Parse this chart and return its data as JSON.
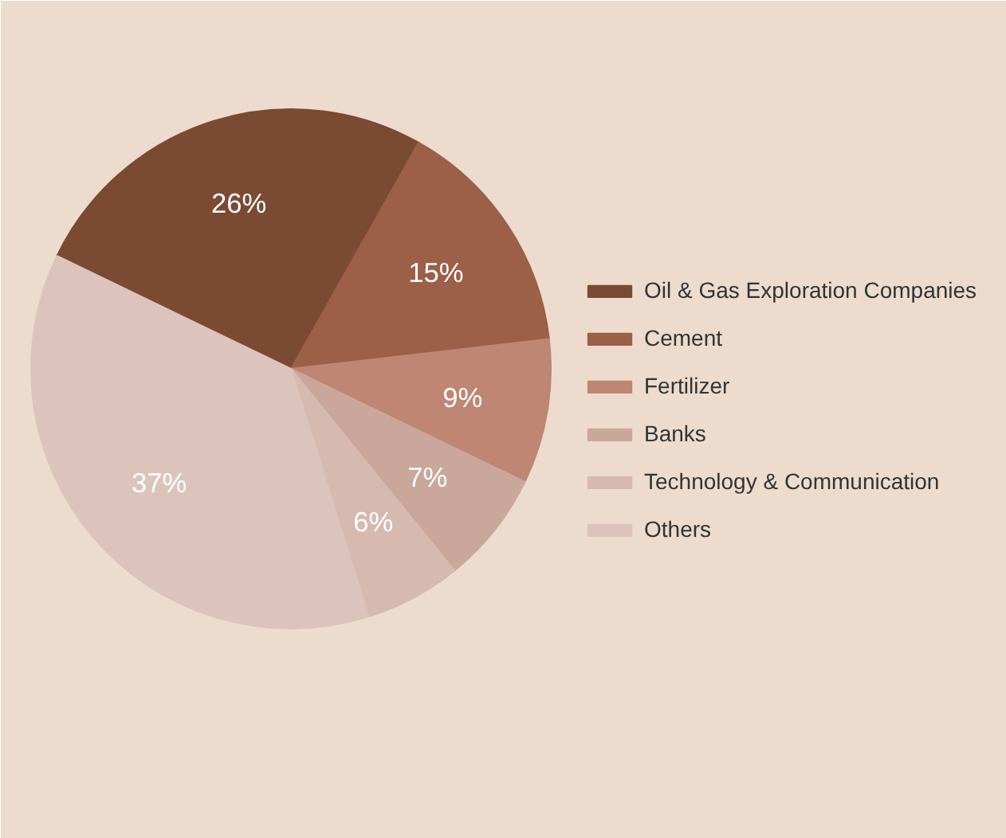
{
  "chart_data": {
    "type": "pie",
    "categories": [
      "Oil & Gas Exploration Companies",
      "Cement",
      "Fertilizer",
      "Banks",
      "Technology & Communication",
      "Others"
    ],
    "values": [
      26,
      15,
      9,
      7,
      6,
      37
    ],
    "colors": [
      "#7b4a33",
      "#9c5f48",
      "#bf8673",
      "#c9a89b",
      "#d6bab0",
      "#dcc4bc"
    ],
    "value_labels": [
      "26%",
      "15%",
      "9%",
      "7%",
      "6%",
      "37%"
    ],
    "legend": "right"
  }
}
